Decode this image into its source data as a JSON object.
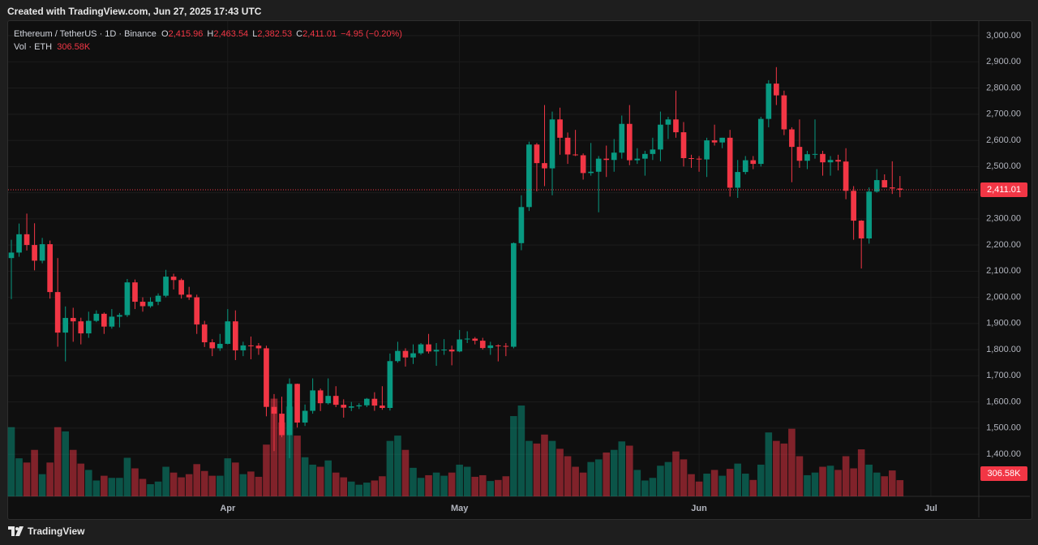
{
  "header": {
    "text": "Created with TradingView.com, Jun 27, 2025 17:43 UTC"
  },
  "footer": {
    "brand": "TradingView"
  },
  "chart_data": {
    "type": "candlestick",
    "title": "Ethereum / TetherUS · 1D · Binance",
    "ohlc_labels": [
      {
        "key": "O",
        "value": "2,415.96"
      },
      {
        "key": "H",
        "value": "2,463.54"
      },
      {
        "key": "L",
        "value": "2,382.53"
      },
      {
        "key": "C",
        "value": "2,411.01"
      }
    ],
    "change_label": "−4.95 (−0.20%)",
    "last_price_label": "2,411.01",
    "colors": {
      "up": "#089981",
      "down": "#f23645",
      "up_volume": "rgba(8,153,129,0.5)",
      "down_volume": "rgba(242,54,69,0.5)"
    },
    "grid": true,
    "xlim": [
      -0.42,
      125.2
    ],
    "xticks": [
      {
        "value": 28,
        "label": "Apr"
      },
      {
        "value": 58,
        "label": "May"
      },
      {
        "value": 89,
        "label": "Jun"
      },
      {
        "value": 119,
        "label": "Jul"
      }
    ],
    "ylim": [
      1239,
      3056
    ],
    "yticks": [
      {
        "value": 1400,
        "label": "1,400.00"
      },
      {
        "value": 1500,
        "label": "1,500.00"
      },
      {
        "value": 1600,
        "label": "1,600.00"
      },
      {
        "value": 1700,
        "label": "1,700.00"
      },
      {
        "value": 1800,
        "label": "1,800.00"
      },
      {
        "value": 1900,
        "label": "1,900.00"
      },
      {
        "value": 2000,
        "label": "2,000.00"
      },
      {
        "value": 2100,
        "label": "2,100.00"
      },
      {
        "value": 2200,
        "label": "2,200.00"
      },
      {
        "value": 2300,
        "label": "2,300.00"
      },
      {
        "value": 2400,
        "label": "2,400.00"
      },
      {
        "value": 2500,
        "label": "2,500.00"
      },
      {
        "value": 2600,
        "label": "2,600.00"
      },
      {
        "value": 2700,
        "label": "2,700.00"
      },
      {
        "value": 2800,
        "label": "2,800.00"
      },
      {
        "value": 2900,
        "label": "2,900.00"
      },
      {
        "value": 3000,
        "label": "3,000.00"
      }
    ],
    "open": [
      2150,
      2171,
      2241,
      2200,
      2140,
      2203,
      2020,
      1865,
      1921,
      1908,
      1862,
      1910,
      1937,
      1888,
      1926,
      1932,
      2057,
      1983,
      1966,
      1983,
      2006,
      2079,
      2066,
      2010,
      2000,
      1896,
      1828,
      1805,
      1822,
      1908,
      1797,
      1816,
      1815,
      1805,
      1581,
      1555,
      1473,
      1669,
      1521,
      1566,
      1644,
      1595,
      1623,
      1589,
      1578,
      1583,
      1587,
      1612,
      1586,
      1577,
      1756,
      1795,
      1770,
      1786,
      1820,
      1793,
      1799,
      1800,
      1793,
      1839,
      1842,
      1834,
      1806,
      1816,
      1814,
      1811,
      2207,
      2345,
      2584,
      2513,
      2493,
      2680,
      2610,
      2546,
      2543,
      2475,
      2480,
      2530,
      2525,
      2553,
      2663,
      2524,
      2530,
      2548,
      2565,
      2660,
      2680,
      2631,
      2532,
      2530,
      2527,
      2600,
      2592,
      2610,
      2419,
      2479,
      2524,
      2510,
      2682,
      2817,
      2772,
      2642,
      2575,
      2522,
      2547,
      2548,
      2516,
      2525,
      2519,
      2407,
      2293,
      2225,
      2404,
      2448,
      2420,
      2415.96
    ],
    "high": [
      2220,
      2282,
      2320,
      2283,
      2227,
      2217,
      2150,
      1965,
      1960,
      1922,
      1945,
      1950,
      1942,
      1955,
      1940,
      2070,
      2068,
      2000,
      2000,
      2015,
      2105,
      2090,
      2072,
      2040,
      2010,
      1910,
      1840,
      1860,
      1955,
      1950,
      1830,
      1850,
      1825,
      1815,
      1630,
      1620,
      1690,
      1670,
      1590,
      1690,
      1651,
      1690,
      1660,
      1610,
      1600,
      1595,
      1615,
      1637,
      1660,
      1785,
      1830,
      1805,
      1820,
      1825,
      1860,
      1825,
      1840,
      1815,
      1875,
      1870,
      1848,
      1845,
      1830,
      1820,
      1825,
      2210,
      2390,
      2595,
      2590,
      2735,
      2710,
      2725,
      2630,
      2640,
      2550,
      2590,
      2540,
      2580,
      2605,
      2695,
      2735,
      2570,
      2560,
      2610,
      2710,
      2690,
      2790,
      2670,
      2545,
      2540,
      2610,
      2660,
      2610,
      2640,
      2525,
      2540,
      2540,
      2690,
      2830,
      2880,
      2790,
      2650,
      2680,
      2560,
      2680,
      2560,
      2540,
      2545,
      2570,
      2425,
      2295,
      2420,
      2490,
      2470,
      2520,
      2463.54
    ],
    "low": [
      1993,
      2155,
      2179,
      2103,
      2130,
      1995,
      1811,
      1755,
      1830,
      1820,
      1845,
      1905,
      1860,
      1880,
      1885,
      1925,
      1955,
      1945,
      1960,
      1970,
      2000,
      2030,
      1995,
      1990,
      1860,
      1810,
      1775,
      1795,
      1820,
      1760,
      1775,
      1763,
      1780,
      1545,
      1412,
      1465,
      1385,
      1502,
      1508,
      1555,
      1565,
      1590,
      1580,
      1540,
      1565,
      1573,
      1580,
      1566,
      1570,
      1567,
      1750,
      1735,
      1745,
      1780,
      1785,
      1738,
      1780,
      1740,
      1790,
      1825,
      1820,
      1800,
      1780,
      1755,
      1775,
      1805,
      2180,
      2330,
      2405,
      2425,
      2390,
      2545,
      2510,
      2540,
      2450,
      2465,
      2325,
      2460,
      2480,
      2530,
      2505,
      2510,
      2465,
      2525,
      2520,
      2605,
      2610,
      2500,
      2495,
      2480,
      2460,
      2580,
      2570,
      2385,
      2380,
      2470,
      2490,
      2500,
      2650,
      2735,
      2620,
      2440,
      2495,
      2490,
      2530,
      2465,
      2465,
      2485,
      2375,
      2220,
      2110,
      2205,
      2400,
      2420,
      2395,
      2382.53
    ],
    "close": [
      2171,
      2241,
      2200,
      2140,
      2203,
      2020,
      1865,
      1921,
      1908,
      1862,
      1910,
      1937,
      1888,
      1926,
      1932,
      2057,
      1983,
      1966,
      1983,
      2006,
      2079,
      2066,
      2010,
      2000,
      1896,
      1828,
      1805,
      1822,
      1908,
      1797,
      1816,
      1815,
      1805,
      1581,
      1555,
      1473,
      1669,
      1521,
      1566,
      1644,
      1595,
      1623,
      1589,
      1578,
      1583,
      1587,
      1612,
      1586,
      1577,
      1756,
      1795,
      1770,
      1786,
      1820,
      1793,
      1799,
      1800,
      1793,
      1839,
      1842,
      1834,
      1806,
      1816,
      1814,
      1811,
      2207,
      2345,
      2584,
      2513,
      2493,
      2680,
      2610,
      2546,
      2543,
      2475,
      2480,
      2530,
      2525,
      2553,
      2663,
      2524,
      2530,
      2548,
      2565,
      2660,
      2680,
      2631,
      2532,
      2530,
      2527,
      2600,
      2592,
      2610,
      2419,
      2479,
      2524,
      2510,
      2682,
      2817,
      2772,
      2642,
      2575,
      2522,
      2547,
      2548,
      2516,
      2525,
      2519,
      2407,
      2293,
      2225,
      2404,
      2448,
      2420,
      2415.96,
      2411.01
    ],
    "volume": {
      "name": "Vol · ETH",
      "value_label": "306.58K",
      "y2lim": [
        0,
        9000
      ],
      "values": [
        1310,
        720,
        640,
        880,
        420,
        640,
        1310,
        1230,
        880,
        620,
        500,
        300,
        390,
        350,
        350,
        730,
        530,
        330,
        230,
        280,
        560,
        450,
        360,
        420,
        610,
        480,
        390,
        390,
        720,
        640,
        420,
        470,
        370,
        980,
        1850,
        1400,
        1700,
        1150,
        740,
        600,
        560,
        680,
        450,
        360,
        280,
        220,
        260,
        300,
        380,
        1050,
        1150,
        880,
        540,
        350,
        400,
        450,
        390,
        450,
        600,
        560,
        370,
        400,
        290,
        310,
        380,
        1520,
        1720,
        1050,
        1000,
        1170,
        1050,
        900,
        760,
        560,
        450,
        650,
        700,
        830,
        880,
        1040,
        960,
        500,
        300,
        350,
        580,
        650,
        850,
        700,
        420,
        280,
        430,
        500,
        390,
        520,
        620,
        430,
        310,
        600,
        1210,
        1050,
        1000,
        1280,
        760,
        400,
        450,
        560,
        580,
        500,
        760,
        530,
        890,
        600,
        450,
        380,
        490,
        306.58
      ]
    }
  }
}
